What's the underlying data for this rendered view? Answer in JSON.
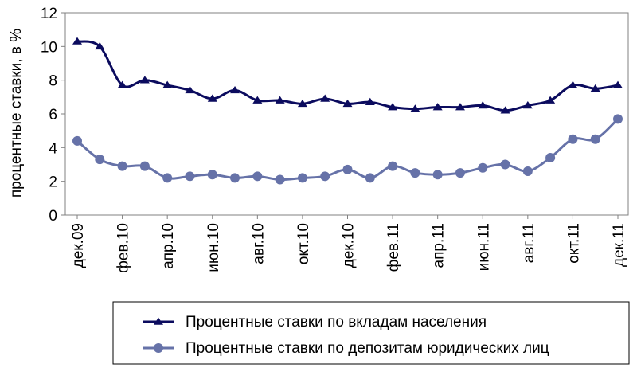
{
  "chart_data": {
    "type": "line",
    "title": "",
    "xlabel": "",
    "ylabel": "процентные ставки, в %",
    "ylim": [
      0,
      12
    ],
    "yticks": [
      0,
      2,
      4,
      6,
      8,
      10,
      12
    ],
    "grid": false,
    "legend_position": "bottom",
    "x_ticks": [
      "дек.09",
      "фев.10",
      "апр.10",
      "июн.10",
      "авг.10",
      "окт.10",
      "дек.10",
      "фев.11",
      "апр.11",
      "июн.11",
      "авг.11",
      "окт.11",
      "дек.11"
    ],
    "x": [
      "дек.09",
      "янв.10",
      "фев.10",
      "мар.10",
      "апр.10",
      "май.10",
      "июн.10",
      "июл.10",
      "авг.10",
      "сен.10",
      "окт.10",
      "ноя.10",
      "дек.10",
      "янв.11",
      "фев.11",
      "мар.11",
      "апр.11",
      "май.11",
      "июн.11",
      "июл.11",
      "авг.11",
      "сен.11",
      "окт.11",
      "ноя.11",
      "дек.11"
    ],
    "series": [
      {
        "name": "Процентные ставки по вкладам населения",
        "color": "#0b0b5e",
        "marker": "triangle",
        "values": [
          10.3,
          10.0,
          7.7,
          8.0,
          7.7,
          7.4,
          6.9,
          7.4,
          6.8,
          6.8,
          6.6,
          6.9,
          6.6,
          6.7,
          6.4,
          6.3,
          6.4,
          6.4,
          6.5,
          6.2,
          6.5,
          6.8,
          7.7,
          7.5,
          7.7
        ]
      },
      {
        "name": "Процентные ставки по депозитам юридических лиц",
        "color": "#6672a8",
        "marker": "circle",
        "values": [
          4.4,
          3.3,
          2.9,
          2.9,
          2.2,
          2.3,
          2.4,
          2.2,
          2.3,
          2.1,
          2.2,
          2.3,
          2.7,
          2.2,
          2.9,
          2.5,
          2.4,
          2.5,
          2.8,
          3.0,
          2.6,
          3.4,
          4.5,
          4.5,
          5.7
        ]
      }
    ]
  }
}
